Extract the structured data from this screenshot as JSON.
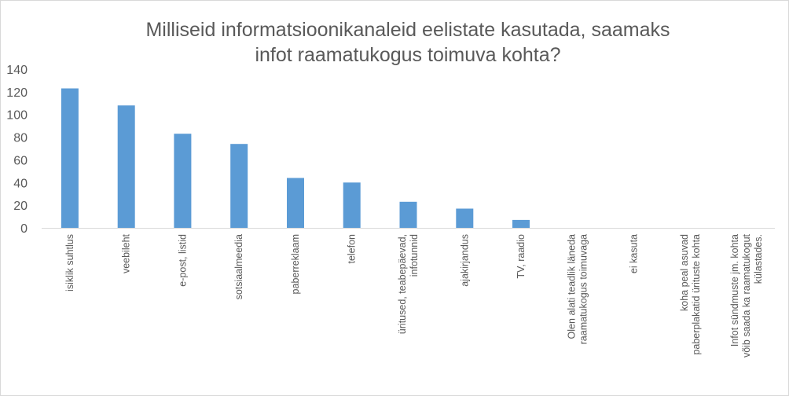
{
  "chart_data": {
    "type": "bar",
    "title": "Milliseid informatsioonikanaleid eelistate kasutada, saamaks infot raamatukogus toimuva kohta?",
    "title_lines": [
      "Milliseid informatsioonikanaleid eelistate kasutada, saamaks",
      "infot raamatukogus toimuva kohta?"
    ],
    "categories": [
      [
        "isiklik suhtlus"
      ],
      [
        "veebileht"
      ],
      [
        "e-post, listid"
      ],
      [
        "sotsiaalmeedia"
      ],
      [
        "paberreklaam"
      ],
      [
        "telefon"
      ],
      [
        "üritused, teabepäevad,",
        "infotunnid"
      ],
      [
        "ajakirjandus"
      ],
      [
        "TV, raadio"
      ],
      [
        "Olen alati teadlik läneda",
        "raamatukogus toimuvaga"
      ],
      [
        "ei kasuta"
      ],
      [
        "koha peal asuvad",
        "paberplakatid ürituste kohta"
      ],
      [
        "Infot sündmuste jm. kohta",
        "võib saada ka raamatukogut",
        "külastades."
      ]
    ],
    "values": [
      123,
      108,
      83,
      74,
      44,
      40,
      23,
      17,
      7,
      0,
      0,
      0,
      0
    ],
    "ylim": [
      0,
      140
    ],
    "yticks": [
      0,
      20,
      40,
      60,
      80,
      100,
      120,
      140
    ],
    "ytick_labels": [
      "0",
      "20",
      "40",
      "60",
      "80",
      "100",
      "120",
      "140"
    ],
    "xlabel": "",
    "ylabel": "",
    "grid": false,
    "legend": "none",
    "colors": {
      "bar": "#5b9bd5",
      "axis": "#d9d9d9",
      "text": "#595959"
    }
  }
}
